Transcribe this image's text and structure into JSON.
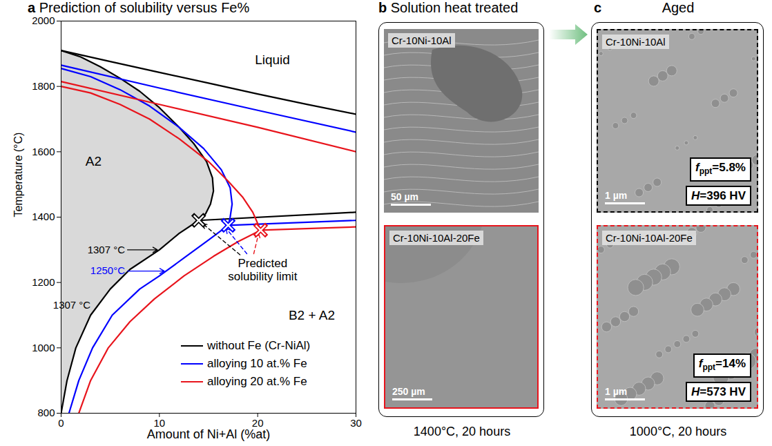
{
  "chart_data": {
    "type": "line",
    "panel_label": "a",
    "title": "Prediction of solubility versus Fe%",
    "x_label": "Amount of Ni+Al (%at)",
    "y_label": "Temperature (°C)",
    "xlim": [
      0,
      30
    ],
    "xticks": [
      0,
      10,
      20,
      30
    ],
    "ylim": [
      800,
      2000
    ],
    "yticks": [
      800,
      1000,
      1200,
      1400,
      1600,
      1800,
      2000
    ],
    "legend": "lower right",
    "series": [
      {
        "name": "without Fe (Cr-NiAl)",
        "color": "#000000",
        "x": [
          0,
          5,
          10,
          15,
          20,
          25,
          30,
          null,
          0,
          2,
          4,
          6,
          8,
          10,
          12,
          13.5,
          14.8,
          15.4,
          15.5,
          15.2,
          14.7,
          14,
          null,
          0,
          0.6,
          1.5,
          3,
          5,
          7,
          10,
          12,
          14,
          null,
          14,
          30
        ],
        "values": [
          1910,
          1876,
          1843,
          1810,
          1777,
          1745,
          1715,
          null,
          1910,
          1890,
          1860,
          1825,
          1785,
          1735,
          1675,
          1625,
          1570,
          1520,
          1480,
          1440,
          1410,
          1390,
          null,
          800,
          900,
          1000,
          1100,
          1180,
          1240,
          1300,
          1350,
          1390,
          null,
          1390,
          1415
        ],
        "solubility_limit": [
          14,
          1390
        ]
      },
      {
        "name": "alloying 10 at.% Fe",
        "color": "#0000ff",
        "x": [
          0,
          10,
          20,
          30,
          null,
          0,
          3,
          6,
          9,
          12,
          14.5,
          16.3,
          17.2,
          17.4,
          17.2,
          17,
          null,
          0.8,
          1.8,
          3.2,
          5.2,
          8,
          10,
          12.5,
          15,
          17,
          null,
          17,
          30
        ],
        "values": [
          1865,
          1795,
          1727,
          1660,
          null,
          1855,
          1830,
          1790,
          1740,
          1675,
          1610,
          1545,
          1490,
          1440,
          1400,
          1375,
          null,
          800,
          900,
          1000,
          1100,
          1180,
          1220,
          1275,
          1330,
          1375,
          null,
          1375,
          1390
        ],
        "solubility_limit": [
          17,
          1375
        ]
      },
      {
        "name": "alloying 20 at.% Fe",
        "color": "#e8141c",
        "x": [
          0,
          10,
          20,
          30,
          null,
          0,
          3,
          6,
          9,
          12,
          15,
          17,
          18.5,
          19.5,
          20.3,
          null,
          1.8,
          3,
          4.8,
          7,
          9.5,
          12.5,
          15.5,
          18,
          20.3,
          null,
          20.3,
          30
        ],
        "values": [
          1815,
          1745,
          1675,
          1600,
          null,
          1800,
          1780,
          1745,
          1700,
          1640,
          1570,
          1510,
          1460,
          1415,
          1360,
          null,
          800,
          900,
          1000,
          1080,
          1150,
          1220,
          1280,
          1325,
          1360,
          null,
          1360,
          1370
        ],
        "solubility_limit": [
          20.3,
          1360
        ]
      }
    ],
    "regions": [
      {
        "text": "Liquid",
        "x": 21.5,
        "y": 1880
      },
      {
        "text": "A2",
        "x": 3.3,
        "y": 1570
      },
      {
        "text": "B2 + A2",
        "x": 25.5,
        "y": 1100
      }
    ],
    "annotations": [
      {
        "text": "1307 °C",
        "x": 6.5,
        "y": 1300,
        "color": "#000000",
        "arrow_to": [
          9.8,
          1300
        ]
      },
      {
        "text": "1250°C",
        "x": 6.5,
        "y": 1235,
        "color": "#0000ff",
        "arrow_to": [
          10.5,
          1235
        ]
      },
      {
        "text": "1307 °C",
        "x": 3.0,
        "y": 1130,
        "color": "#000000"
      }
    ],
    "callout": {
      "text": "Predicted solubility limit",
      "x": 20.5,
      "y": 1240,
      "line_style": "dashed",
      "arrows": [
        {
          "from": [
            18.2,
            1285
          ],
          "to": [
            14.4,
            1380
          ],
          "color": "#000000"
        },
        {
          "from": [
            18.9,
            1288
          ],
          "to": [
            16.8,
            1365
          ],
          "color": "#0000ff"
        },
        {
          "from": [
            19.6,
            1288
          ],
          "to": [
            20.1,
            1350
          ],
          "color": "#e8141c"
        }
      ]
    }
  },
  "panels": [
    {
      "panel_label": "b",
      "title": "Solution heat treated",
      "caption": "1400°C, 20 hours",
      "images": [
        {
          "name": "Cr-10Ni-10Al",
          "scale_bar": "50 µm"
        },
        {
          "name": "Cr-10Ni-10Al-20Fe",
          "scale_bar": "250 µm"
        }
      ]
    },
    {
      "panel_label": "c",
      "title": "Aged",
      "caption": "1000°C, 20 hours",
      "images": [
        {
          "name": "Cr-10Ni-10Al",
          "scale_bar": "1 µm",
          "fraction_symbol": "f",
          "fraction_subscript": "ppt",
          "fraction_text": "=5.8%",
          "hardness_symbol": "H",
          "hardness_text": "=396 HV"
        },
        {
          "name": "Cr-10Ni-10Al-20Fe",
          "scale_bar": "1 µm",
          "fraction_symbol": "f",
          "fraction_subscript": "ppt",
          "fraction_text": "=14%",
          "hardness_symbol": "H",
          "hardness_text": "=573 HV"
        }
      ]
    }
  ]
}
